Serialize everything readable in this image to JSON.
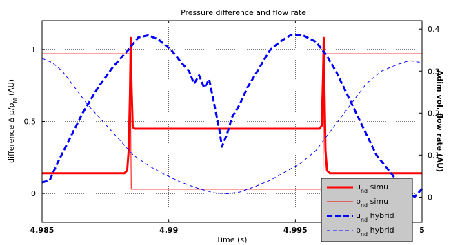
{
  "chart_data": {
    "type": "line",
    "title": "Pressure difference and flow rate",
    "xlabel": "Time (s)",
    "ylabel_left": {
      "main": "difference Δ p/p",
      "sub": "M",
      "unit": " (AU)"
    },
    "ylabel_right": "Adim vol. flow rate (AU)",
    "xlim": [
      4.985,
      5.0
    ],
    "ylim_left": [
      -0.2,
      1.2
    ],
    "ylim_right": [
      -0.06,
      0.42
    ],
    "x_ticks": [
      {
        "value": 4.985,
        "label": "4.985"
      },
      {
        "value": 4.99,
        "label": "4.99"
      },
      {
        "value": 4.995,
        "label": "4.995"
      },
      {
        "value": 5.0,
        "label": "5"
      }
    ],
    "y_ticks_left": [
      {
        "value": 0,
        "label": "0"
      },
      {
        "value": 0.5,
        "label": "0.5"
      },
      {
        "value": 1,
        "label": "1"
      }
    ],
    "y_ticks_right": [
      {
        "value": 0,
        "label": "0"
      },
      {
        "value": 0.1,
        "label": "0.1"
      },
      {
        "value": 0.2,
        "label": "0.2"
      },
      {
        "value": 0.3,
        "label": "0.3"
      },
      {
        "value": 0.4,
        "label": "0.4"
      }
    ],
    "grid": "x-only",
    "legend_position": "bottom-right",
    "series": [
      {
        "name": "u_nd simu",
        "label_main": "u",
        "label_sub": "nd",
        "label_rest": " simu",
        "axis": "left",
        "color": "#ff0000",
        "style": "solid",
        "width": 3,
        "points": [
          [
            4.985,
            0.14
          ],
          [
            4.98825,
            0.14
          ],
          [
            4.98836,
            0.16
          ],
          [
            4.98842,
            0.3
          ],
          [
            4.98847,
            0.7
          ],
          [
            4.9885,
            1.08
          ],
          [
            4.98853,
            0.75
          ],
          [
            4.98858,
            0.46
          ],
          [
            4.98866,
            0.45
          ],
          [
            4.99595,
            0.45
          ],
          [
            4.99604,
            0.47
          ],
          [
            4.99609,
            0.8
          ],
          [
            4.99612,
            1.08
          ],
          [
            4.99615,
            0.7
          ],
          [
            4.99619,
            0.3
          ],
          [
            4.99625,
            0.16
          ],
          [
            4.99636,
            0.14
          ],
          [
            5.0,
            0.14
          ]
        ]
      },
      {
        "name": "p_nd simu",
        "label_main": "p",
        "label_sub": "nd",
        "label_rest": " simu",
        "axis": "left",
        "color": "#ff0000",
        "style": "solid",
        "width": 1,
        "points": [
          [
            4.985,
            0.97
          ],
          [
            4.98848,
            0.97
          ],
          [
            4.98852,
            0.03
          ],
          [
            4.99609,
            0.03
          ],
          [
            4.99613,
            0.97
          ],
          [
            5.0,
            0.97
          ]
        ]
      },
      {
        "name": "u_nd hybrid",
        "label_main": "u",
        "label_sub": "nd",
        "label_rest": " hybrid",
        "axis": "right",
        "color": "#0000ff",
        "style": "dashed-thick",
        "width": 3,
        "points": [
          [
            4.985,
            0.035
          ],
          [
            4.9853,
            0.04
          ],
          [
            4.9856,
            0.08
          ],
          [
            4.9861,
            0.14
          ],
          [
            4.9866,
            0.2
          ],
          [
            4.9872,
            0.26
          ],
          [
            4.9878,
            0.31
          ],
          [
            4.9884,
            0.35
          ],
          [
            4.9888,
            0.38
          ],
          [
            4.9892,
            0.385
          ],
          [
            4.9896,
            0.375
          ],
          [
            4.9901,
            0.35
          ],
          [
            4.9905,
            0.32
          ],
          [
            4.9908,
            0.3
          ],
          [
            4.991,
            0.27
          ],
          [
            4.9912,
            0.29
          ],
          [
            4.9914,
            0.26
          ],
          [
            4.9916,
            0.28
          ],
          [
            4.9918,
            0.22
          ],
          [
            4.992,
            0.16
          ],
          [
            4.9921,
            0.12
          ],
          [
            4.9923,
            0.15
          ],
          [
            4.9925,
            0.19
          ],
          [
            4.9928,
            0.22
          ],
          [
            4.9931,
            0.26
          ],
          [
            4.9934,
            0.29
          ],
          [
            4.9937,
            0.32
          ],
          [
            4.994,
            0.35
          ],
          [
            4.9944,
            0.37
          ],
          [
            4.9948,
            0.385
          ],
          [
            4.9953,
            0.385
          ],
          [
            4.9958,
            0.37
          ],
          [
            4.9962,
            0.34
          ],
          [
            4.9966,
            0.3
          ],
          [
            4.997,
            0.25
          ],
          [
            4.9974,
            0.2
          ],
          [
            4.9978,
            0.15
          ],
          [
            4.9982,
            0.1
          ],
          [
            4.9986,
            0.07
          ],
          [
            4.999,
            0.04
          ],
          [
            4.9994,
            0.03
          ],
          [
            4.9997,
            0.0
          ],
          [
            5.0,
            0.02
          ]
        ]
      },
      {
        "name": "p_nd hybrid",
        "label_main": "p",
        "label_sub": "nd",
        "label_rest": " hybrid",
        "axis": "right",
        "color": "#0000ff",
        "style": "dashed-thin",
        "width": 1,
        "points": [
          [
            4.985,
            0.33
          ],
          [
            4.9854,
            0.32
          ],
          [
            4.9858,
            0.3
          ],
          [
            4.9863,
            0.26
          ],
          [
            4.9868,
            0.22
          ],
          [
            4.9874,
            0.18
          ],
          [
            4.988,
            0.14
          ],
          [
            4.9886,
            0.1
          ],
          [
            4.9892,
            0.075
          ],
          [
            4.9898,
            0.055
          ],
          [
            4.9905,
            0.035
          ],
          [
            4.9912,
            0.02
          ],
          [
            4.9918,
            0.01
          ],
          [
            4.9923,
            0.008
          ],
          [
            4.9928,
            0.012
          ],
          [
            4.9934,
            0.025
          ],
          [
            4.994,
            0.04
          ],
          [
            4.9946,
            0.06
          ],
          [
            4.9952,
            0.08
          ],
          [
            4.9958,
            0.11
          ],
          [
            4.9963,
            0.15
          ],
          [
            4.9968,
            0.19
          ],
          [
            4.9973,
            0.23
          ],
          [
            4.9978,
            0.27
          ],
          [
            4.9984,
            0.3
          ],
          [
            4.999,
            0.315
          ],
          [
            4.9995,
            0.325
          ],
          [
            5.0,
            0.32
          ]
        ]
      }
    ]
  }
}
